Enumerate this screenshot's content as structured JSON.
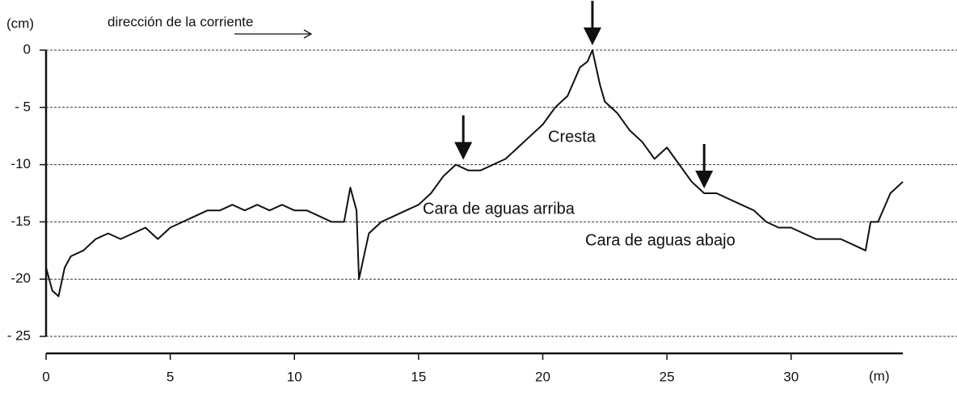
{
  "chart_data": {
    "type": "line",
    "y_label": "(cm)",
    "x_label": "(m)",
    "flow_label": "dirección de la corriente",
    "annotations": [
      "Cresta",
      "Cara de aguas arriba",
      "Cara de aguas abajo"
    ],
    "xlim": [
      0,
      34.5
    ],
    "ylim": [
      -25,
      0
    ],
    "xticks": [
      0,
      5,
      10,
      15,
      20,
      25,
      30
    ],
    "yticks": [
      0,
      {
        "value": -5,
        "label": "- 5"
      },
      -10,
      -15,
      -20,
      {
        "value": -25,
        "label": "- 25"
      }
    ],
    "grid": true,
    "color": "#111111",
    "arrows": [
      {
        "x": 16.8,
        "y": -10
      },
      {
        "x": 22,
        "y": 0
      },
      {
        "x": 26.5,
        "y": -12.5
      }
    ],
    "x": [
      0,
      0.25,
      0.5,
      0.75,
      1,
      1.5,
      2,
      2.5,
      3,
      3.5,
      4,
      4.5,
      5,
      5.5,
      6,
      6.5,
      7,
      7.5,
      8,
      8.5,
      9,
      9.5,
      10,
      10.5,
      11,
      11.5,
      12,
      12.25,
      12.5,
      12.6,
      13,
      13.5,
      14,
      14.5,
      15,
      15.5,
      16,
      16.5,
      17,
      17.5,
      18,
      18.5,
      19,
      19.5,
      20,
      20.5,
      21,
      21.5,
      21.8,
      22,
      22.3,
      22.5,
      23,
      23.5,
      24,
      24.5,
      25,
      25.5,
      26,
      26.5,
      27,
      27.5,
      28,
      28.5,
      29,
      29.5,
      30,
      30.5,
      31,
      31.5,
      32,
      32.5,
      33,
      33.2,
      33.5,
      34,
      34.5
    ],
    "values": [
      -19,
      -21,
      -21.5,
      -19,
      -18,
      -17.5,
      -16.5,
      -16,
      -16.5,
      -16,
      -15.5,
      -16.5,
      -15.5,
      -15,
      -14.5,
      -14,
      -14,
      -13.5,
      -14,
      -13.5,
      -14,
      -13.5,
      -14,
      -14,
      -14.5,
      -15,
      -15,
      -12,
      -14,
      -20,
      -16,
      -15,
      -14.5,
      -14,
      -13.5,
      -12.5,
      -11,
      -10,
      -10.5,
      -10.5,
      -10,
      -9.5,
      -8.5,
      -7.5,
      -6.5,
      -5,
      -4,
      -1.5,
      -1,
      0,
      -3,
      -4.5,
      -5.5,
      -7,
      -8,
      -9.5,
      -8.5,
      -10,
      -11.5,
      -12.5,
      -12.5,
      -13,
      -13.5,
      -14,
      -15,
      -15.5,
      -15.5,
      -16,
      -16.5,
      -16.5,
      -16.5,
      -17,
      -17.5,
      -15,
      -15,
      -12.5,
      -11.5
    ]
  }
}
